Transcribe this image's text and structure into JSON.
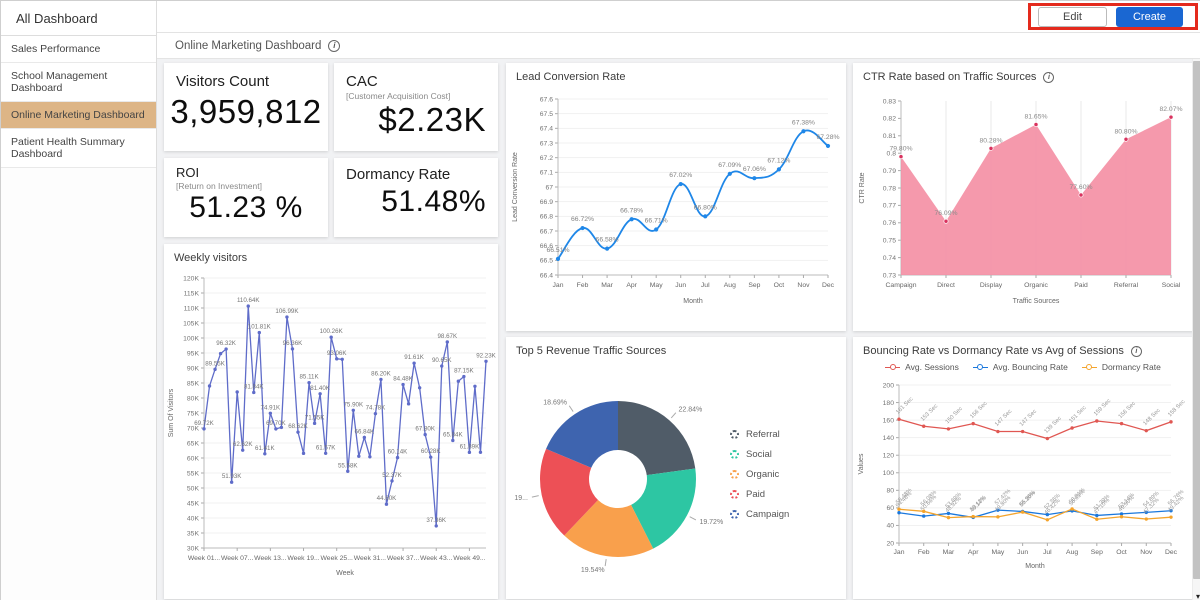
{
  "sidebar": {
    "title": "All Dashboard",
    "items": [
      {
        "label": "Sales Performance",
        "selected": false
      },
      {
        "label": "School Management Dashboard",
        "selected": false
      },
      {
        "label": "Online Marketing Dashboard",
        "selected": true
      },
      {
        "label": "Patient Health Summary Dashboard",
        "selected": false
      }
    ]
  },
  "topbar": {
    "edit_label": "Edit",
    "create_label": "Create"
  },
  "header": {
    "title": "Online Marketing Dashboard"
  },
  "kpis": {
    "visitors": {
      "title": "Visitors Count",
      "value": "3,959,812"
    },
    "cac": {
      "title": "CAC",
      "subtitle": "[Customer Acquisition Cost]",
      "value": "$2.23K"
    },
    "roi": {
      "title": "ROI",
      "subtitle": "[Return on Investment]",
      "value": "51.23 %"
    },
    "dormancy": {
      "title": "Dormancy Rate",
      "value": "51.48%"
    }
  },
  "chart_data": [
    {
      "type": "line",
      "title": "Weekly visitors",
      "xlabel": "Week",
      "ylabel": "Sum Of Visitors",
      "ylim": [
        30,
        120
      ],
      "ytick_step": 5,
      "yunit": "K",
      "x_tick_every": 6,
      "x_tick_labels": [
        "Week 01...",
        "Week 07...",
        "Week 13...",
        "Week 19...",
        "Week 25...",
        "Week 31...",
        "Week 37...",
        "Week 43...",
        "Week 49..."
      ],
      "values": [
        69.72,
        84.0,
        89.55,
        94.8,
        96.32,
        51.93,
        82.0,
        62.62,
        110.64,
        81.84,
        101.81,
        61.41,
        74.91,
        69.7,
        70.2,
        106.99,
        96.36,
        68.62,
        61.55,
        85.11,
        71.55,
        81.4,
        61.57,
        100.26,
        93.06,
        92.9,
        55.58,
        75.9,
        60.6,
        66.84,
        60.4,
        74.78,
        86.2,
        44.6,
        52.37,
        60.14,
        84.48,
        78.05,
        91.61,
        83.4,
        67.8,
        60.28,
        37.36,
        90.65,
        98.67,
        65.84,
        85.6,
        87.15,
        61.89,
        83.9,
        61.9,
        92.23
      ],
      "point_labels": [
        "69.72K",
        "",
        "89.55K",
        "",
        "96.32K",
        "51.93K",
        "",
        "62.62K",
        "110.64K",
        "81.84K",
        "101.81K",
        "61.41K",
        "74.91K",
        "69.70K",
        "",
        "106.99K",
        "96.36K",
        "68.62K",
        "",
        "85.11K",
        "71.55K",
        "81.40K",
        "61.57K",
        "100.26K",
        "93.06K",
        "",
        "55.58K",
        "75.90K",
        "",
        "66.84K",
        "",
        "74.78K",
        "86.20K",
        "44.60K",
        "52.37K",
        "60.14K",
        "84.48K",
        "",
        "91.61K",
        "",
        "67.80K",
        "60.28K",
        "37.36K",
        "90.65K",
        "98.67K",
        "65.84K",
        "",
        "87.15K",
        "61.89K",
        "",
        "",
        "92.23K"
      ],
      "color": "#5f6cc9"
    },
    {
      "type": "line",
      "title": "Lead Conversion Rate",
      "xlabel": "Month",
      "ylabel": "Lead Conversion Rate",
      "smooth": true,
      "ylim": [
        66.4,
        67.6
      ],
      "ytick_step": 0.1,
      "categories": [
        "Jan",
        "Feb",
        "Mar",
        "Apr",
        "May",
        "Jun",
        "Jul",
        "Aug",
        "Sep",
        "Oct",
        "Nov",
        "Dec"
      ],
      "values": [
        66.51,
        66.72,
        66.58,
        66.78,
        66.71,
        67.02,
        66.8,
        67.09,
        67.06,
        67.12,
        67.38,
        67.28
      ],
      "point_labels": [
        "66.51%",
        "66.72%",
        "66.58%",
        "66.78%",
        "66.71%",
        "67.02%",
        "66.80%",
        "67.09%",
        "67.06%",
        "67.12%",
        "67.38%",
        "67.28%"
      ],
      "color": "#1f87e8"
    },
    {
      "type": "area",
      "title": "CTR Rate based on Traffic Sources",
      "xlabel": "Traffic Sources",
      "ylabel": "CTR Rate",
      "ylim": [
        0.73,
        0.83
      ],
      "ytick_step": 0.01,
      "categories": [
        "Campaign",
        "Direct",
        "Display",
        "Organic",
        "Paid",
        "Referral",
        "Social"
      ],
      "values": [
        0.798,
        0.7609,
        0.8028,
        0.8165,
        0.776,
        0.808,
        0.8207
      ],
      "point_labels": [
        "79.80%",
        "76.09%",
        "80.28%",
        "81.65%",
        "77.60%",
        "80.80%",
        "82.07%"
      ],
      "fill_color": "#f490a5",
      "point_color": "#d9325e"
    },
    {
      "type": "pie",
      "title": "Top 5 Revenue Traffic Sources",
      "slices": [
        {
          "label": "Referral",
          "value": 22.84,
          "display": "22.84%",
          "color": "#505c68"
        },
        {
          "label": "Social",
          "value": 19.72,
          "display": "19.72%",
          "color": "#2dc6a3"
        },
        {
          "label": "Organic",
          "value": 19.54,
          "display": "19.54%",
          "color": "#f9a04c"
        },
        {
          "label": "Paid",
          "value": 19.21,
          "display": "19...",
          "color": "#ed5056"
        },
        {
          "label": "Campaign",
          "value": 18.69,
          "display": "18.69%",
          "color": "#3e64af"
        }
      ]
    },
    {
      "type": "line",
      "title": "Bouncing Rate vs Dormancy Rate vs Avg of Sessions",
      "xlabel": "Month",
      "ylabel": "Values",
      "ylim": [
        20,
        200
      ],
      "ytick_step": 20,
      "legend_position": "top",
      "categories": [
        "Jan",
        "Feb",
        "Mar",
        "Apr",
        "May",
        "Jun",
        "Jul",
        "Aug",
        "Sep",
        "Oct",
        "Nov",
        "Dec"
      ],
      "series": [
        {
          "name": "Avg. Sessions",
          "color": "#e05752",
          "values": [
            161,
            153,
            150,
            156,
            147,
            147,
            139,
            151,
            159,
            156,
            148,
            158
          ],
          "labels": [
            "161 Sec",
            "153 Sec",
            "150 Sec",
            "156 Sec",
            "147 Sec",
            "147 Sec",
            "139 Sec",
            "151 Sec",
            "159 Sec",
            "156 Sec",
            "148 Sec",
            "158 Sec"
          ]
        },
        {
          "name": "Avg. Bouncing Rate",
          "color": "#1b78dd",
          "values": [
            54.48,
            50.66,
            53.69,
            49.14,
            57.42,
            55.96,
            52.36,
            56.61,
            51.39,
            53.14,
            54.89,
            56.76
          ],
          "labels": [
            "54.48%",
            "50.66%",
            "53.69%",
            "49.14%",
            "57.42%",
            "55.96%",
            "52.36%",
            "56.61%",
            "51.39%",
            "53.14%",
            "54.89%",
            "56.76%"
          ]
        },
        {
          "name": "Dormancy Rate",
          "color": "#f4a42c",
          "values": [
            58.48,
            56.08,
            48.92,
            50.12,
            49.8,
            55.2,
            46.42,
            58.81,
            47.1,
            49.9,
            47.32,
            49.42
          ],
          "labels": [
            "58.48%",
            "56.08%",
            "48.92%",
            "50.12%",
            "49.80%",
            "55.20%",
            "46.42%",
            "58.81%",
            "47.10%",
            "49.90%",
            "47.32%",
            "49.42%"
          ]
        }
      ]
    }
  ]
}
